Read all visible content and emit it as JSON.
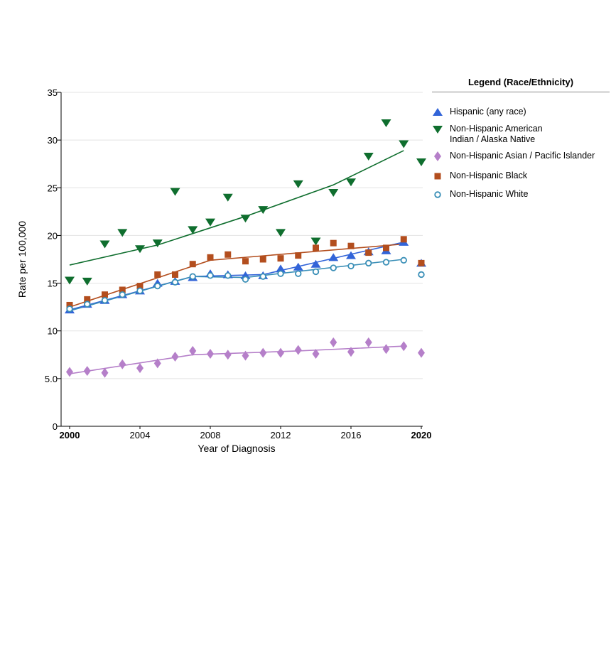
{
  "chart_data": {
    "type": "scatter",
    "title": "",
    "xlabel": "Year of Diagnosis",
    "ylabel": "Rate per 100,000",
    "xlim": [
      2000,
      2020
    ],
    "ylim": [
      0,
      35
    ],
    "x_ticks": [
      {
        "value": 2000,
        "label": "2000",
        "bold": true
      },
      {
        "value": 2004,
        "label": "2004",
        "bold": false
      },
      {
        "value": 2008,
        "label": "2008",
        "bold": false
      },
      {
        "value": 2012,
        "label": "2012",
        "bold": false
      },
      {
        "value": 2016,
        "label": "2016",
        "bold": false
      },
      {
        "value": 2020,
        "label": "2020",
        "bold": true
      }
    ],
    "y_ticks": [
      {
        "value": 0,
        "label": "0"
      },
      {
        "value": 5,
        "label": "5.0"
      },
      {
        "value": 10,
        "label": "10"
      },
      {
        "value": 15,
        "label": "15"
      },
      {
        "value": 20,
        "label": "20"
      },
      {
        "value": 25,
        "label": "25"
      },
      {
        "value": 30,
        "label": "30"
      },
      {
        "value": 35,
        "label": "35"
      }
    ],
    "grid": true,
    "legend_title": "Legend (Race/Ethnicity)",
    "legend_position": "right",
    "x": [
      2000,
      2001,
      2002,
      2003,
      2004,
      2005,
      2006,
      2007,
      2008,
      2009,
      2010,
      2011,
      2012,
      2013,
      2014,
      2015,
      2016,
      2017,
      2018,
      2019,
      2020
    ],
    "series": [
      {
        "name": "Hispanic (any race)",
        "marker": "triangle-up",
        "color": "#3264d8",
        "values": [
          12.2,
          12.8,
          13.2,
          13.8,
          14.2,
          15.0,
          15.2,
          15.6,
          16.0,
          15.9,
          15.8,
          15.8,
          16.5,
          16.7,
          17.0,
          17.7,
          17.9,
          18.3,
          18.4,
          19.3,
          17.1
        ],
        "trend": [
          [
            2000,
            12.2
          ],
          [
            2007,
            15.7
          ],
          [
            2011,
            15.9
          ],
          [
            2019,
            19.3
          ]
        ]
      },
      {
        "name": "Non-Hispanic American\nIndian / Alaska Native",
        "marker": "triangle-down",
        "color": "#0f6e2e",
        "values": [
          15.3,
          15.2,
          19.1,
          20.3,
          18.6,
          19.2,
          24.6,
          20.6,
          21.4,
          24.0,
          21.8,
          22.7,
          20.3,
          25.4,
          19.4,
          24.5,
          25.6,
          28.3,
          31.8,
          29.6,
          27.7
        ],
        "trend": [
          [
            2000,
            16.9
          ],
          [
            2005,
            19.0
          ],
          [
            2010,
            22.0
          ],
          [
            2015,
            25.3
          ],
          [
            2019,
            28.9
          ]
        ]
      },
      {
        "name": "Non-Hispanic Asian / Pacific Islander",
        "marker": "diamond",
        "color": "#b57fc9",
        "values": [
          5.7,
          5.8,
          5.6,
          6.5,
          6.1,
          6.6,
          7.3,
          7.9,
          7.6,
          7.5,
          7.4,
          7.7,
          7.7,
          8.0,
          7.6,
          8.8,
          7.8,
          8.8,
          8.1,
          8.4,
          7.7
        ],
        "trend": [
          [
            2000,
            5.5
          ],
          [
            2007,
            7.5
          ],
          [
            2013,
            7.9
          ],
          [
            2019,
            8.4
          ]
        ]
      },
      {
        "name": "Non-Hispanic Black",
        "marker": "square",
        "color": "#b34e1e",
        "values": [
          12.7,
          13.3,
          13.8,
          14.3,
          14.7,
          15.9,
          15.9,
          17.0,
          17.7,
          18.0,
          17.3,
          17.5,
          17.6,
          17.9,
          18.7,
          19.2,
          18.9,
          18.2,
          18.7,
          19.6,
          17.1
        ],
        "trend": [
          [
            2000,
            12.5
          ],
          [
            2008,
            17.4
          ],
          [
            2019,
            19.1
          ]
        ]
      },
      {
        "name": "Non-Hispanic White",
        "marker": "circle",
        "color": "#3a8fb7",
        "values": [
          12.3,
          12.8,
          13.2,
          13.8,
          14.2,
          14.7,
          15.1,
          15.7,
          15.8,
          15.8,
          15.4,
          15.7,
          16.0,
          16.0,
          16.2,
          16.6,
          16.8,
          17.1,
          17.2,
          17.4,
          15.9
        ],
        "trend": [
          [
            2000,
            12.1
          ],
          [
            2007,
            15.7
          ],
          [
            2010,
            15.6
          ],
          [
            2019,
            17.5
          ]
        ]
      }
    ]
  }
}
